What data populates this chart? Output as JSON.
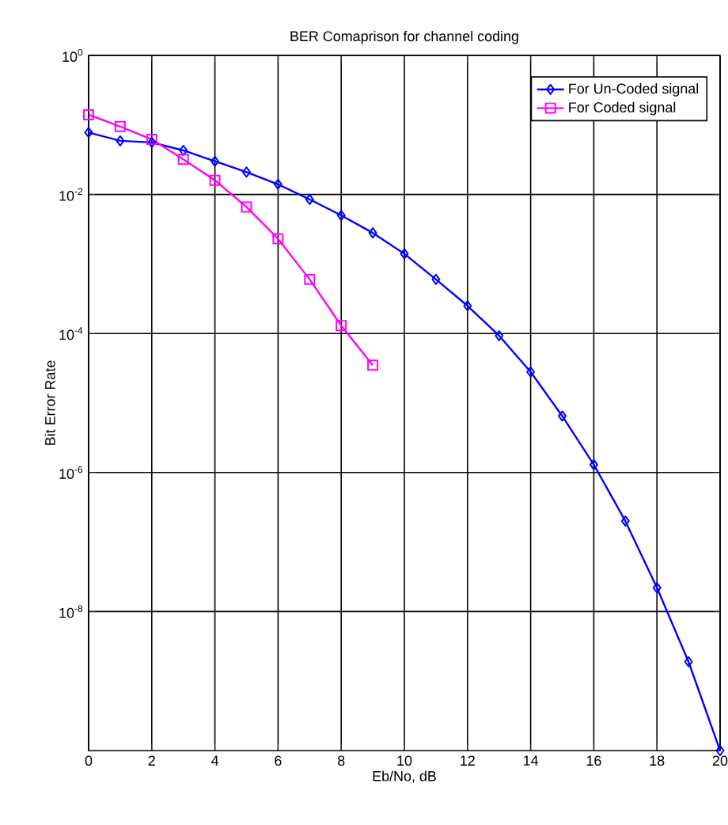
{
  "chart_data": {
    "type": "line",
    "title": "BER Comaprison for channel coding",
    "xlabel": "Eb/No, dB",
    "ylabel": "Bit Error Rate",
    "log": "y",
    "grid": true,
    "legend": "top right",
    "line_style": "solid",
    "xlim": [
      0,
      20
    ],
    "xticks": [
      0,
      2,
      4,
      6,
      8,
      10,
      12,
      14,
      16,
      18,
      20
    ],
    "ylim": [
      1e-10,
      1
    ],
    "yticks": [
      {
        "value": 1,
        "label": "10$^{0}$"
      },
      {
        "value": 0.01,
        "label": "10$^{-2}$"
      },
      {
        "value": 0.0001,
        "label": "10$^{-4}$"
      },
      {
        "value": 1e-06,
        "label": "10$^{-6}$"
      },
      {
        "value": 1e-08,
        "label": "10$^{-8}$"
      }
    ],
    "series": [
      {
        "name": "For Un-Coded signal",
        "color": "#0000ff",
        "marker": "diamond",
        "x": [
          0,
          1,
          2,
          3,
          4,
          5,
          6,
          7,
          8,
          9,
          10,
          11,
          12,
          13,
          14,
          15,
          16,
          17,
          18,
          19,
          20
        ],
        "values": [
          0.078,
          0.059,
          0.056,
          0.043,
          0.03,
          0.021,
          0.014,
          0.0085,
          0.005,
          0.0028,
          0.0014,
          0.0006,
          0.00025,
          9.3e-05,
          2.8e-05,
          6.5e-06,
          1.3e-06,
          2e-07,
          2.2e-08,
          1.9e-09,
          1e-10
        ]
      },
      {
        "name": "For Coded signal",
        "color": "#ff00ff",
        "marker": "square",
        "x": [
          0,
          1,
          2,
          3,
          4,
          5,
          6,
          7,
          8,
          9
        ],
        "values": [
          0.14,
          0.095,
          0.062,
          0.032,
          0.016,
          0.0066,
          0.0023,
          0.0006,
          0.00013,
          3.5e-05
        ]
      }
    ]
  }
}
